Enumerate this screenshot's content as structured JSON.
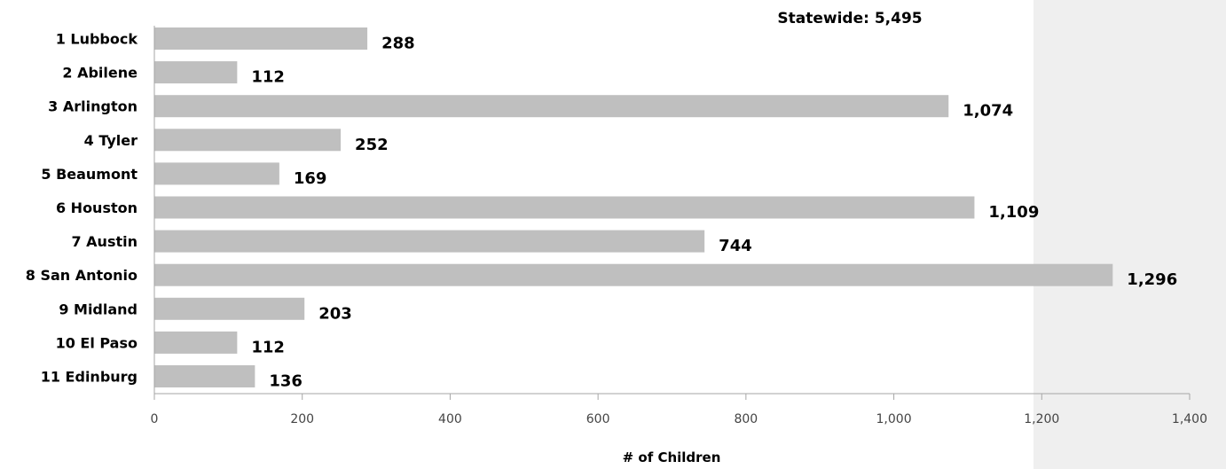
{
  "chart_data": {
    "type": "bar",
    "orientation": "horizontal",
    "categories": [
      "1 Lubbock",
      "2 Abilene",
      "3 Arlington",
      "4 Tyler",
      "5 Beaumont",
      "6 Houston",
      "7 Austin",
      "8 San Antonio",
      "9 Midland",
      "10 El Paso",
      "11 Edinburg"
    ],
    "values": [
      288,
      112,
      1074,
      252,
      169,
      1109,
      744,
      1296,
      203,
      112,
      136
    ],
    "value_labels": [
      "288",
      "112",
      "1,074",
      "252",
      "169",
      "1,109",
      "744",
      "1,296",
      "203",
      "112",
      "136"
    ],
    "xlabel": "# of Children",
    "xlim": [
      0,
      1400
    ],
    "xticks": [
      0,
      200,
      400,
      600,
      800,
      1000,
      1200,
      1400
    ],
    "xtick_labels": [
      "0",
      "200",
      "400",
      "600",
      "800",
      "1,000",
      "1,200",
      "1,400"
    ],
    "annotation": "Statewide: 5,495",
    "grid": false,
    "colors": {
      "bar": "#bfbfbf",
      "background_right": "#efefef",
      "axis": "#a6a6a6"
    }
  }
}
